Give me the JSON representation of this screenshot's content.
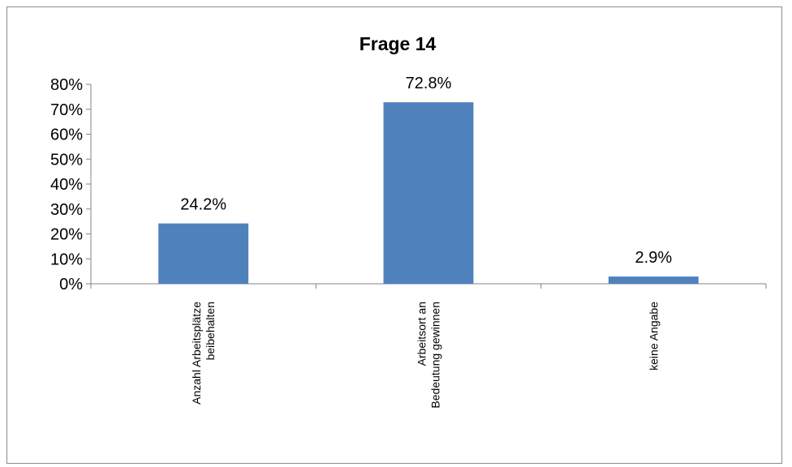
{
  "chart_data": {
    "type": "bar",
    "title": "Frage 14",
    "categories": [
      [
        "Anzahl Arbeitsplätze",
        "beibehalten"
      ],
      [
        "Arbeitsort an",
        "Bedeutung gewinnen"
      ],
      [
        "keine Angabe"
      ]
    ],
    "values": [
      24.2,
      72.8,
      2.9
    ],
    "value_labels": [
      "24.2%",
      "72.8%",
      "2.9%"
    ],
    "ylim": [
      0,
      80
    ],
    "yticks": [
      0,
      10,
      20,
      30,
      40,
      50,
      60,
      70,
      80
    ],
    "ytick_labels": [
      "0%",
      "10%",
      "20%",
      "30%",
      "40%",
      "50%",
      "60%",
      "70%",
      "80%"
    ],
    "xlabel": "",
    "ylabel": "",
    "grid": false,
    "legend": "none",
    "bar_color": "#4F81BD"
  }
}
